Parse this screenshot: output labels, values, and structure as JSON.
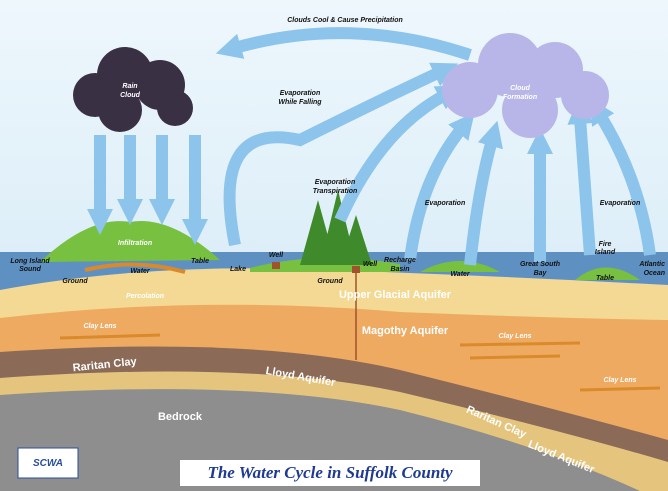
{
  "title": "The Water Cycle in Suffolk County",
  "logo": "SCWA",
  "sky": {
    "top_caption": "Clouds Cool & Cause Precipitation",
    "rain_cloud": [
      "Rain",
      "Cloud"
    ],
    "cloud_formation": [
      "Cloud",
      "Formation"
    ],
    "evaporation_while_falling": [
      "Evaporation",
      "While Falling"
    ],
    "evaporation_transpiration": [
      "Evaporation",
      "Transpiration"
    ],
    "evaporation_left": "Evaporation",
    "evaporation_right": "Evaporation"
  },
  "surface": {
    "long_island_sound": [
      "Long Island",
      "Sound"
    ],
    "infiltration": "Infiltration",
    "hill_ground": "Ground",
    "hill_water": "Water",
    "hill_table": "Table",
    "lake": "Lake",
    "well_left": "Well",
    "well_right": "Well",
    "center_ground": "Ground",
    "recharge_basin": [
      "Recharge",
      "Basin"
    ],
    "center_water": "Water",
    "great_south_bay": [
      "Great South",
      "Bay"
    ],
    "fire_island": [
      "Fire",
      "Island"
    ],
    "fire_island_table": "Table",
    "atlantic_ocean": [
      "Atlantic",
      "Ocean"
    ]
  },
  "subsurface": {
    "percolation": "Percolation",
    "clay_lens_left": "Clay Lens",
    "clay_lens_mid": "Clay Lens",
    "clay_lens_right": "Clay Lens",
    "upper_glacial_aquifer": "Upper Glacial Aquifer",
    "magothy_aquifer": "Magothy Aquifer",
    "raritan_clay_left": "Raritan Clay",
    "raritan_clay_right": "Raritan Clay",
    "lloyd_aquifer_left": "Lloyd Aquifer",
    "lloyd_aquifer_right": "Lloyd Aquifer",
    "bedrock": "Bedrock"
  }
}
